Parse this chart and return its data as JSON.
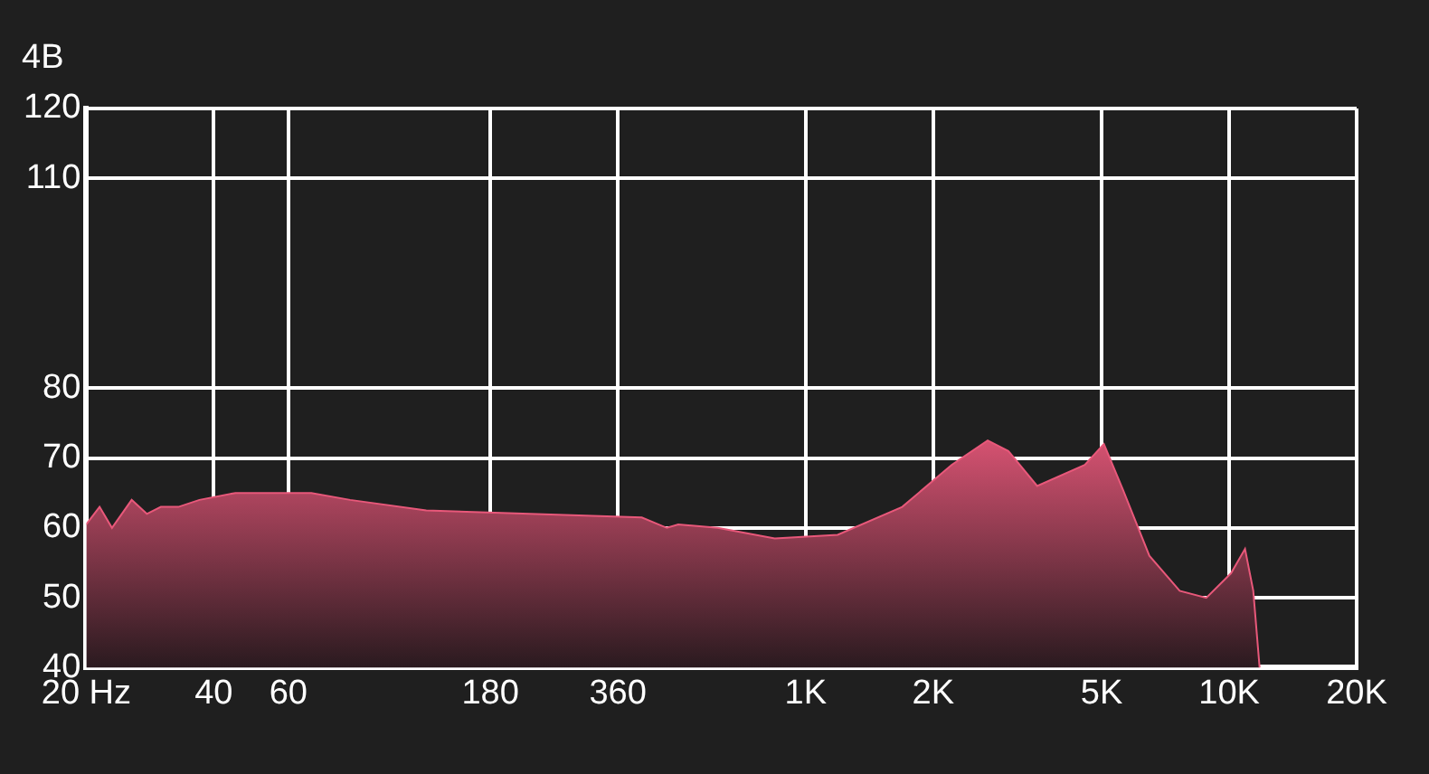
{
  "chart_data": {
    "type": "area",
    "ylabel": "4B",
    "x": [
      20,
      21.5,
      23,
      25.6,
      27.8,
      30,
      33,
      37,
      45,
      68,
      84,
      127,
      410,
      470,
      500,
      620,
      845,
      1190,
      1690,
      2210,
      2690,
      3010,
      3520,
      4560,
      5060,
      5610,
      6480,
      7640,
      8830,
      10100,
      10900,
      11400,
      11800
    ],
    "series": [
      {
        "color": "#e8587a",
        "values": [
          60.5,
          63,
          60,
          64,
          62,
          63,
          63,
          64,
          65,
          65,
          64,
          62.5,
          61.5,
          60,
          60.5,
          60,
          58.5,
          59,
          63,
          69,
          72.5,
          71,
          66,
          69,
          72,
          65.5,
          56,
          51,
          50,
          53.5,
          57,
          51,
          40
        ]
      }
    ],
    "log": "x",
    "xlim": [
      20,
      20000
    ],
    "xticks": [
      {
        "value": 20,
        "label": "20 Hz"
      },
      40,
      60,
      180,
      360,
      {
        "value": 1000,
        "label": "1K"
      },
      {
        "value": 2000,
        "label": "2K"
      },
      {
        "value": 5000,
        "label": "5K"
      },
      {
        "value": 10000,
        "label": "10K"
      },
      {
        "value": 20000,
        "label": "20K"
      }
    ],
    "ylim": [
      40,
      120
    ],
    "yticks": [
      40,
      50,
      60,
      70,
      80,
      110,
      120
    ],
    "grid": true,
    "legend": false
  }
}
